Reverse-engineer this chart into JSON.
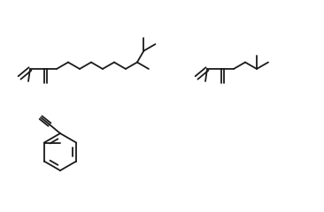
{
  "bg_color": "#ffffff",
  "line_color": "#1a1a1a",
  "line_width": 1.3,
  "figsize": [
    3.66,
    2.4
  ],
  "dpi": 100
}
